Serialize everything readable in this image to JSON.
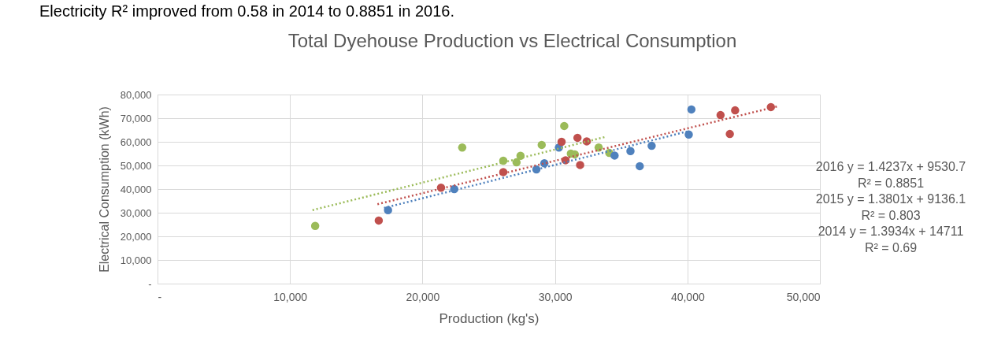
{
  "chart_data": {
    "type": "scatter",
    "title": "Total Dyehouse Production vs Electrical Consumption",
    "xlabel": "Production (kg's)",
    "ylabel": "Electrical Consumption (kWh)",
    "xlim": [
      0,
      50000
    ],
    "ylim": [
      0,
      80000
    ],
    "xticks": [
      {
        "value": 0,
        "label": "-"
      },
      {
        "value": 10000,
        "label": "10,000"
      },
      {
        "value": 20000,
        "label": "20,000"
      },
      {
        "value": 30000,
        "label": "30,000"
      },
      {
        "value": 40000,
        "label": "40,000"
      },
      {
        "value": 50000,
        "label": "50,000"
      }
    ],
    "yticks": [
      {
        "value": 0,
        "label": "-"
      },
      {
        "value": 10000,
        "label": "10,000"
      },
      {
        "value": 20000,
        "label": "20,000"
      },
      {
        "value": 30000,
        "label": "30,000"
      },
      {
        "value": 40000,
        "label": "40,000"
      },
      {
        "value": 50000,
        "label": "50,000"
      },
      {
        "value": 60000,
        "label": "60,000"
      },
      {
        "value": 70000,
        "label": "70,000"
      },
      {
        "value": 80000,
        "label": "80,000"
      }
    ],
    "grid": true,
    "marker": "circle",
    "series": [
      {
        "color": "#9bbb59",
        "x": [
          11900,
          23000,
          26100,
          27100,
          27400,
          29000,
          30700,
          31200,
          31500,
          33300,
          34100
        ],
        "values": [
          24400,
          57600,
          52000,
          51300,
          54100,
          58700,
          66700,
          55000,
          54700,
          57600,
          55300
        ]
      },
      {
        "color": "#4f81bd",
        "x": [
          17400,
          22400,
          28600,
          29200,
          30300,
          34500,
          35700,
          36400,
          37300,
          40100,
          40300
        ],
        "values": [
          31100,
          40000,
          48300,
          50900,
          57600,
          54200,
          56100,
          49700,
          58300,
          63100,
          73700
        ]
      },
      {
        "color": "#c0504d",
        "x": [
          16700,
          21400,
          26100,
          30500,
          30800,
          31700,
          31900,
          32400,
          42500,
          43200,
          43600,
          46300
        ],
        "values": [
          26700,
          40600,
          47200,
          60000,
          52200,
          61700,
          50200,
          60200,
          71300,
          63300,
          73300,
          74700
        ]
      },
      {
        "type": "line",
        "marker": "none",
        "line_style": "dotted",
        "color": "#9bbb59",
        "x": [
          11700,
          33900
        ],
        "values": [
          31100,
          62200
        ]
      },
      {
        "type": "line",
        "marker": "none",
        "line_style": "dotted",
        "color": "#4f81bd",
        "x": [
          17100,
          40000
        ],
        "values": [
          32000,
          64400
        ]
      },
      {
        "type": "line",
        "marker": "none",
        "line_style": "dotted",
        "color": "#c0504d",
        "x": [
          16600,
          46800
        ],
        "values": [
          33600,
          75000
        ]
      }
    ],
    "annotations": [
      "Electricity R² improved from 0.58 in 2014 to 0.8851 in 2016.",
      "2016 y = 1.4237x + 9530.7",
      "R² = 0.8851",
      "2015 y = 1.3801x + 9136.1",
      "R² = 0.803",
      "2014 y = 1.3934x + 14711",
      "R² = 0.69"
    ]
  }
}
